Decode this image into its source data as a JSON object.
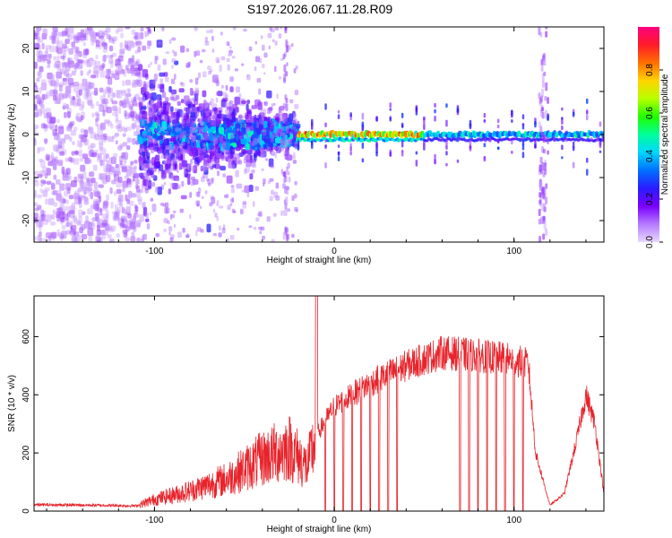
{
  "title": "S197.2026.067.11.28.R09",
  "chart_data": [
    {
      "type": "heatmap",
      "name": "spectrogram",
      "xlabel": "Height of straight line (km)",
      "ylabel": "Frequency (Hz)",
      "xlim": [
        -167,
        150
      ],
      "ylim": [
        -25,
        25
      ],
      "xticks": [
        -100,
        0,
        100
      ],
      "yticks": [
        -20,
        -10,
        0,
        10,
        20
      ],
      "colorbar": {
        "label": "Normalized spectral amplitude",
        "range": [
          0.0,
          1.0
        ],
        "ticks": [
          "0.0",
          "0.2",
          "0.4",
          "0.6",
          "0.8"
        ],
        "colors": [
          "#e9d8ff",
          "#b57bff",
          "#7a00ff",
          "#2a1cff",
          "#0070ff",
          "#00d7ff",
          "#00ff9a",
          "#20ff00",
          "#b8ff00",
          "#ffd400",
          "#ff7000",
          "#ff1a2a",
          "#ff0080"
        ]
      },
      "regions": [
        {
          "x_range": [
            -167,
            -108
          ],
          "description_level": "sparse",
          "amplitude": 0.08
        },
        {
          "x_range": [
            -108,
            -20
          ],
          "description_level": "broadband",
          "amplitude": 0.3
        },
        {
          "x_range": [
            -20,
            50
          ],
          "description_level": "narrow",
          "amplitude": 0.85
        },
        {
          "x_range": [
            50,
            150
          ],
          "description_level": "narrow",
          "amplitude": 0.45
        }
      ]
    },
    {
      "type": "line",
      "name": "snr",
      "xlabel": "Height of straight line (km)",
      "ylabel": "SNR (10 * v/v)",
      "xlim": [
        -167,
        150
      ],
      "ylim": [
        0,
        740
      ],
      "xticks": [
        -100,
        0,
        100
      ],
      "yticks": [
        0,
        200,
        400,
        600
      ],
      "color": "#e8232b",
      "envelope": {
        "x": [
          -167,
          -130,
          -110,
          -100,
          -80,
          -60,
          -40,
          -25,
          -15,
          -10,
          0,
          20,
          40,
          60,
          80,
          100,
          108,
          112,
          120,
          128,
          135,
          140,
          145,
          150
        ],
        "y": [
          22,
          20,
          18,
          40,
          70,
          110,
          180,
          220,
          150,
          260,
          360,
          440,
          500,
          545,
          535,
          520,
          505,
          200,
          20,
          60,
          250,
          400,
          300,
          60
        ]
      },
      "spike": {
        "x": -10,
        "y": 740
      },
      "dropouts_x": [
        -5,
        0,
        5,
        10,
        15,
        20,
        25,
        30,
        35,
        70,
        75,
        80,
        85,
        90,
        95,
        100,
        105
      ]
    }
  ]
}
